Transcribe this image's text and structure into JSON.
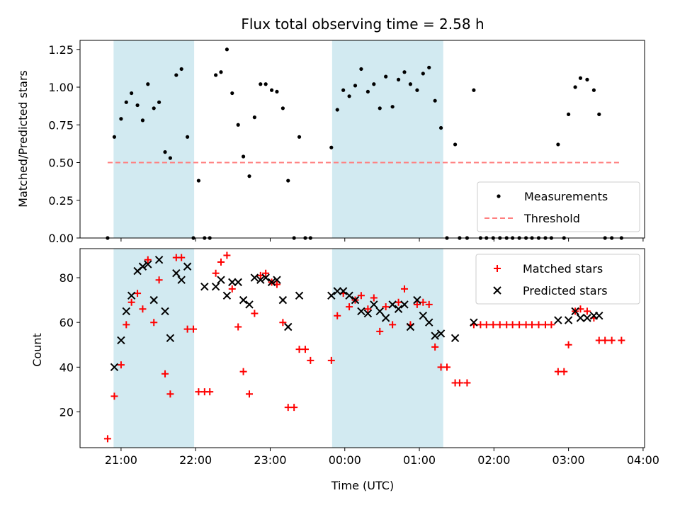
{
  "chart_data": [
    {
      "type": "scatter",
      "title": "Flux total observing time = 2.58 h",
      "xlabel": "",
      "ylabel": "Matched/Predicted stars",
      "x_unit": "hours from 00:00 UTC",
      "xlim": [
        -3.55,
        4.02
      ],
      "ylim": [
        0,
        1.31
      ],
      "yticks": [
        0.0,
        0.25,
        0.5,
        0.75,
        1.0,
        1.25
      ],
      "ytick_labels": [
        "0.00",
        "0.25",
        "0.50",
        "0.75",
        "1.00",
        "1.25"
      ],
      "shaded_x_ranges": [
        [
          -3.1,
          -2.02
        ],
        [
          -0.17,
          1.32
        ]
      ],
      "shade_color": "#add8e6",
      "legend_position": "lower right",
      "series": [
        {
          "name": "Measurements",
          "marker": "dot",
          "color": "#000000",
          "points": [
            [
              -3.18,
              0.0
            ],
            [
              -3.09,
              0.67
            ],
            [
              -3.0,
              0.79
            ],
            [
              -2.93,
              0.9
            ],
            [
              -2.86,
              0.96
            ],
            [
              -2.78,
              0.88
            ],
            [
              -2.71,
              0.78
            ],
            [
              -2.64,
              1.02
            ],
            [
              -2.56,
              0.86
            ],
            [
              -2.49,
              0.9
            ],
            [
              -2.41,
              0.57
            ],
            [
              -2.34,
              0.53
            ],
            [
              -2.26,
              1.08
            ],
            [
              -2.19,
              1.12
            ],
            [
              -2.11,
              0.67
            ],
            [
              -2.03,
              0.0
            ],
            [
              -1.96,
              0.38
            ],
            [
              -1.88,
              0.0
            ],
            [
              -1.81,
              0.0
            ],
            [
              -1.73,
              1.08
            ],
            [
              -1.66,
              1.1
            ],
            [
              -1.58,
              1.25
            ],
            [
              -1.51,
              0.96
            ],
            [
              -1.43,
              0.75
            ],
            [
              -1.36,
              0.54
            ],
            [
              -1.28,
              0.41
            ],
            [
              -1.21,
              0.8
            ],
            [
              -1.13,
              1.02
            ],
            [
              -1.06,
              1.02
            ],
            [
              -0.98,
              0.98
            ],
            [
              -0.91,
              0.97
            ],
            [
              -0.83,
              0.86
            ],
            [
              -0.76,
              0.38
            ],
            [
              -0.68,
              0.0
            ],
            [
              -0.61,
              0.67
            ],
            [
              -0.53,
              0.0
            ],
            [
              -0.46,
              0.0
            ],
            [
              -0.18,
              0.6
            ],
            [
              -0.1,
              0.85
            ],
            [
              -0.02,
              0.98
            ],
            [
              0.06,
              0.94
            ],
            [
              0.14,
              1.01
            ],
            [
              0.22,
              1.12
            ],
            [
              0.31,
              0.97
            ],
            [
              0.39,
              1.02
            ],
            [
              0.47,
              0.86
            ],
            [
              0.55,
              1.07
            ],
            [
              0.64,
              0.87
            ],
            [
              0.72,
              1.05
            ],
            [
              0.8,
              1.1
            ],
            [
              0.88,
              1.02
            ],
            [
              0.97,
              0.98
            ],
            [
              1.05,
              1.09
            ],
            [
              1.13,
              1.13
            ],
            [
              1.21,
              0.91
            ],
            [
              1.29,
              0.73
            ],
            [
              1.37,
              0.0
            ],
            [
              1.48,
              0.62
            ],
            [
              1.54,
              0.0
            ],
            [
              1.64,
              0.0
            ],
            [
              1.73,
              0.98
            ],
            [
              1.82,
              0.0
            ],
            [
              1.9,
              0.0
            ],
            [
              1.99,
              0.0
            ],
            [
              2.08,
              0.0
            ],
            [
              2.17,
              0.0
            ],
            [
              2.25,
              0.0
            ],
            [
              2.34,
              0.0
            ],
            [
              2.43,
              0.0
            ],
            [
              2.51,
              0.0
            ],
            [
              2.6,
              0.0
            ],
            [
              2.69,
              0.0
            ],
            [
              2.77,
              0.0
            ],
            [
              2.86,
              0.62
            ],
            [
              2.94,
              0.0
            ],
            [
              3.0,
              0.82
            ],
            [
              3.09,
              1.0
            ],
            [
              3.16,
              1.06
            ],
            [
              3.25,
              1.05
            ],
            [
              3.34,
              0.98
            ],
            [
              3.41,
              0.82
            ],
            [
              3.49,
              0.0
            ],
            [
              3.58,
              0.0
            ],
            [
              3.71,
              0.0
            ]
          ]
        },
        {
          "name": "Threshold",
          "marker": "dashed-line",
          "color": "#ff7f7f",
          "points": [
            [
              -3.18,
              0.5
            ],
            [
              3.71,
              0.5
            ]
          ]
        }
      ]
    },
    {
      "type": "scatter",
      "title": "",
      "xlabel": "Time (UTC)",
      "ylabel": "Count",
      "x_unit": "hours from 00:00 UTC",
      "xlim": [
        -3.55,
        4.02
      ],
      "ylim": [
        4,
        93
      ],
      "xticks": [
        -3,
        -2,
        -1,
        0,
        1,
        2,
        3,
        4
      ],
      "xtick_labels": [
        "21:00",
        "22:00",
        "23:00",
        "00:00",
        "01:00",
        "02:00",
        "03:00",
        "04:00"
      ],
      "yticks": [
        20,
        40,
        60,
        80
      ],
      "ytick_labels": [
        "20",
        "40",
        "60",
        "80"
      ],
      "shaded_x_ranges": [
        [
          -3.1,
          -2.02
        ],
        [
          -0.17,
          1.32
        ]
      ],
      "shade_color": "#add8e6",
      "legend_position": "upper right",
      "series": [
        {
          "name": "Matched stars",
          "marker": "plus",
          "color": "#ff0000",
          "points": [
            [
              -3.18,
              8
            ],
            [
              -3.09,
              27
            ],
            [
              -3.0,
              41
            ],
            [
              -2.93,
              59
            ],
            [
              -2.86,
              69
            ],
            [
              -2.78,
              73
            ],
            [
              -2.71,
              66
            ],
            [
              -2.64,
              88
            ],
            [
              -2.56,
              60
            ],
            [
              -2.49,
              79
            ],
            [
              -2.41,
              37
            ],
            [
              -2.34,
              28
            ],
            [
              -2.26,
              89
            ],
            [
              -2.19,
              89
            ],
            [
              -2.11,
              57
            ],
            [
              -2.03,
              57
            ],
            [
              -1.96,
              29
            ],
            [
              -1.88,
              29
            ],
            [
              -1.81,
              29
            ],
            [
              -1.73,
              82
            ],
            [
              -1.66,
              87
            ],
            [
              -1.58,
              90
            ],
            [
              -1.51,
              75
            ],
            [
              -1.43,
              58
            ],
            [
              -1.36,
              38
            ],
            [
              -1.28,
              28
            ],
            [
              -1.21,
              64
            ],
            [
              -1.13,
              81
            ],
            [
              -1.06,
              82
            ],
            [
              -0.98,
              78
            ],
            [
              -0.91,
              77
            ],
            [
              -0.83,
              60
            ],
            [
              -0.76,
              22
            ],
            [
              -0.68,
              22
            ],
            [
              -0.61,
              48
            ],
            [
              -0.53,
              48
            ],
            [
              -0.46,
              43
            ],
            [
              -0.18,
              43
            ],
            [
              -0.1,
              63
            ],
            [
              -0.02,
              73
            ],
            [
              0.06,
              67
            ],
            [
              0.14,
              70
            ],
            [
              0.22,
              72
            ],
            [
              0.31,
              66
            ],
            [
              0.39,
              71
            ],
            [
              0.47,
              56
            ],
            [
              0.55,
              67
            ],
            [
              0.64,
              59
            ],
            [
              0.72,
              69
            ],
            [
              0.8,
              75
            ],
            [
              0.88,
              59
            ],
            [
              0.97,
              68
            ],
            [
              1.05,
              69
            ],
            [
              1.13,
              68
            ],
            [
              1.21,
              49
            ],
            [
              1.29,
              40
            ],
            [
              1.37,
              40
            ],
            [
              1.48,
              33
            ],
            [
              1.54,
              33
            ],
            [
              1.64,
              33
            ],
            [
              1.73,
              59
            ],
            [
              1.82,
              59
            ],
            [
              1.9,
              59
            ],
            [
              1.99,
              59
            ],
            [
              2.08,
              59
            ],
            [
              2.17,
              59
            ],
            [
              2.25,
              59
            ],
            [
              2.34,
              59
            ],
            [
              2.43,
              59
            ],
            [
              2.51,
              59
            ],
            [
              2.6,
              59
            ],
            [
              2.69,
              59
            ],
            [
              2.77,
              59
            ],
            [
              2.86,
              38
            ],
            [
              2.94,
              38
            ],
            [
              3.0,
              50
            ],
            [
              3.09,
              65
            ],
            [
              3.16,
              66
            ],
            [
              3.25,
              65
            ],
            [
              3.34,
              62
            ],
            [
              3.41,
              52
            ],
            [
              3.49,
              52
            ],
            [
              3.58,
              52
            ],
            [
              3.71,
              52
            ]
          ]
        },
        {
          "name": "Predicted stars",
          "marker": "x",
          "color": "#000000",
          "points": [
            [
              -3.09,
              40
            ],
            [
              -3.0,
              52
            ],
            [
              -2.93,
              65
            ],
            [
              -2.86,
              72
            ],
            [
              -2.78,
              83
            ],
            [
              -2.71,
              85
            ],
            [
              -2.64,
              86
            ],
            [
              -2.56,
              70
            ],
            [
              -2.49,
              88
            ],
            [
              -2.41,
              65
            ],
            [
              -2.34,
              53
            ],
            [
              -2.26,
              82
            ],
            [
              -2.19,
              79
            ],
            [
              -2.11,
              85
            ],
            [
              -1.88,
              76
            ],
            [
              -1.73,
              76
            ],
            [
              -1.66,
              79
            ],
            [
              -1.58,
              72
            ],
            [
              -1.51,
              78
            ],
            [
              -1.43,
              78
            ],
            [
              -1.36,
              70
            ],
            [
              -1.28,
              68
            ],
            [
              -1.21,
              80
            ],
            [
              -1.13,
              79
            ],
            [
              -1.06,
              80
            ],
            [
              -0.98,
              78
            ],
            [
              -0.91,
              79
            ],
            [
              -0.83,
              70
            ],
            [
              -0.76,
              58
            ],
            [
              -0.61,
              72
            ],
            [
              -0.18,
              72
            ],
            [
              -0.1,
              74
            ],
            [
              -0.02,
              74
            ],
            [
              0.06,
              72
            ],
            [
              0.14,
              70
            ],
            [
              0.22,
              65
            ],
            [
              0.31,
              64
            ],
            [
              0.39,
              68
            ],
            [
              0.47,
              65
            ],
            [
              0.55,
              62
            ],
            [
              0.64,
              68
            ],
            [
              0.72,
              66
            ],
            [
              0.8,
              68
            ],
            [
              0.88,
              58
            ],
            [
              0.97,
              70
            ],
            [
              1.05,
              63
            ],
            [
              1.13,
              60
            ],
            [
              1.21,
              54
            ],
            [
              1.29,
              55
            ],
            [
              1.48,
              53
            ],
            [
              1.73,
              60
            ],
            [
              2.86,
              61
            ],
            [
              3.0,
              61
            ],
            [
              3.09,
              65
            ],
            [
              3.16,
              62
            ],
            [
              3.25,
              62
            ],
            [
              3.34,
              63
            ],
            [
              3.41,
              63
            ]
          ]
        }
      ]
    }
  ]
}
